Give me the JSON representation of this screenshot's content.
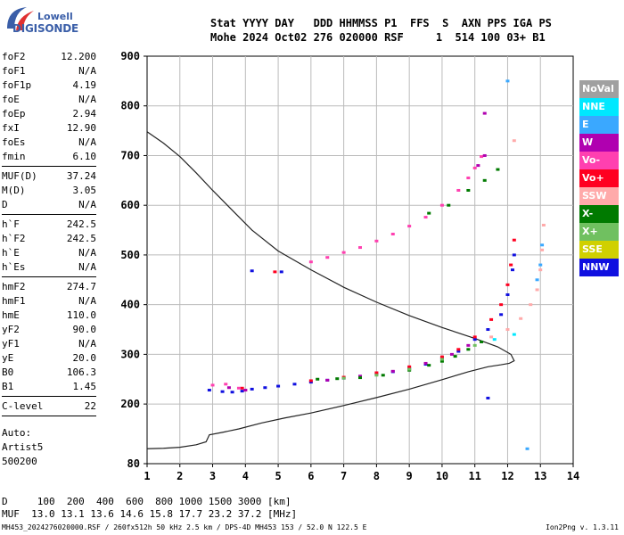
{
  "logo": {
    "line1": "Lowell",
    "line2": "DIGISONDE"
  },
  "header": {
    "labels": "Stat YYYY DAY   DDD HHMMSS P1  FFS  S  AXN PPS IGA PS",
    "values": "Mohe 2024 Oct02 276 020000 RSF     1  514 100 03+ B1"
  },
  "params_group1": [
    {
      "label": "foF2",
      "value": "12.200"
    },
    {
      "label": "foF1",
      "value": "N/A"
    },
    {
      "label": "foF1p",
      "value": "4.19"
    },
    {
      "label": "foE",
      "value": "N/A"
    },
    {
      "label": "foEp",
      "value": "2.94"
    },
    {
      "label": "fxI",
      "value": "12.90"
    },
    {
      "label": "foEs",
      "value": "N/A"
    },
    {
      "label": "fmin",
      "value": "6.10"
    }
  ],
  "params_group2": [
    {
      "label": "MUF(D)",
      "value": "37.24"
    },
    {
      "label": "M(D)",
      "value": "3.05"
    },
    {
      "label": "D",
      "value": "N/A"
    }
  ],
  "params_group3": [
    {
      "label": "h`F",
      "value": "242.5"
    },
    {
      "label": "h`F2",
      "value": "242.5"
    },
    {
      "label": "h`E",
      "value": "N/A"
    },
    {
      "label": "h`Es",
      "value": "N/A"
    }
  ],
  "params_group4": [
    {
      "label": "hmF2",
      "value": "274.7"
    },
    {
      "label": "hmF1",
      "value": "N/A"
    },
    {
      "label": "hmE",
      "value": "110.0"
    },
    {
      "label": "yF2",
      "value": "90.0"
    },
    {
      "label": "yF1",
      "value": "N/A"
    },
    {
      "label": "yE",
      "value": "20.0"
    },
    {
      "label": "B0",
      "value": "106.3"
    },
    {
      "label": "B1",
      "value": "1.45"
    }
  ],
  "params_group5": [
    {
      "label": "C-level",
      "value": "22"
    }
  ],
  "autoscale": {
    "line1": "Auto:",
    "line2": "Artist5",
    "line3": "500200"
  },
  "legend": [
    {
      "label": "NoVal",
      "color": "#a0a0a0"
    },
    {
      "label": "NNE",
      "color": "#00e8ff"
    },
    {
      "label": "E",
      "color": "#3aa8ff"
    },
    {
      "label": "W",
      "color": "#b000b0"
    },
    {
      "label": "Vo-",
      "color": "#ff40b0"
    },
    {
      "label": "Vo+",
      "color": "#ff0020"
    },
    {
      "label": "SSW",
      "color": "#ffaaaa"
    },
    {
      "label": "X-",
      "color": "#007a00"
    },
    {
      "label": "X+",
      "color": "#70c060"
    },
    {
      "label": "SSE",
      "color": "#d0d000"
    },
    {
      "label": "NNW",
      "color": "#1010e0"
    }
  ],
  "muf_table": {
    "d_line": "D     100  200  400  600  800 1000 1500 3000 [km]",
    "muf_line": "MUF  13.0 13.1 13.6 14.6 15.8 17.7 23.2 37.2 [MHz]"
  },
  "footer": {
    "left": "MH453_2024276020000.RSF / 260fx512h 50 kHz 2.5 km / DPS-4D MH453 153 / 52.0 N 122.5 E",
    "right": "Ion2Png v. 1.3.11"
  },
  "chart_data": {
    "type": "scatter",
    "x_ticks": [
      1,
      2,
      3,
      4,
      5,
      6,
      7,
      8,
      9,
      10,
      11,
      12,
      13,
      14
    ],
    "y_ticks": [
      80,
      200,
      300,
      400,
      500,
      600,
      700,
      800,
      900
    ],
    "xlim": [
      1,
      14
    ],
    "ylim": [
      80,
      900
    ],
    "grid": true,
    "legend_position": "right",
    "series": [
      {
        "name": "NNW",
        "color": "#1010e0",
        "x": [
          2.9,
          3.3,
          3.6,
          3.9,
          4.2,
          4.6,
          5.0,
          5.5,
          6.0,
          6.5,
          7.0,
          7.5,
          8.0,
          8.5,
          9.0,
          9.5,
          10.0,
          10.5,
          11.0,
          11.4,
          11.8,
          12.0,
          12.15,
          12.2,
          4.2,
          5.1,
          11.4
        ],
        "y": [
          228,
          225,
          224,
          226,
          230,
          233,
          236,
          240,
          244,
          248,
          252,
          256,
          260,
          265,
          272,
          280,
          292,
          306,
          330,
          350,
          380,
          420,
          470,
          500,
          468,
          466,
          212
        ]
      },
      {
        "name": "Vo+",
        "color": "#ff0020",
        "x": [
          6.0,
          7.0,
          8.0,
          9.0,
          10.0,
          10.5,
          11.0,
          11.5,
          11.8,
          12.0,
          12.1,
          12.2,
          3.9,
          4.9
        ],
        "y": [
          247,
          254,
          263,
          275,
          295,
          310,
          335,
          370,
          400,
          440,
          480,
          530,
          232,
          466
        ]
      },
      {
        "name": "Vo-",
        "color": "#ff40b0",
        "x": [
          6.0,
          6.5,
          7.0,
          7.5,
          8.0,
          8.5,
          9.0,
          9.5,
          10.0,
          10.5,
          10.8,
          11.0,
          11.2,
          3.0,
          3.4,
          3.8,
          4.0
        ],
        "y": [
          486,
          495,
          505,
          515,
          528,
          542,
          558,
          576,
          600,
          630,
          655,
          675,
          698,
          238,
          240,
          232,
          228
        ]
      },
      {
        "name": "W",
        "color": "#b000b0",
        "x": [
          6.5,
          7.5,
          8.5,
          9.5,
          10.3,
          10.8,
          11.1,
          11.3,
          11.3,
          3.5,
          4.0
        ],
        "y": [
          248,
          256,
          266,
          282,
          300,
          318,
          680,
          700,
          785,
          233,
          228
        ]
      },
      {
        "name": "X-",
        "color": "#007a00",
        "x": [
          6.2,
          6.8,
          7.5,
          8.2,
          9.0,
          9.6,
          10.0,
          10.4,
          10.8,
          11.2,
          9.6,
          10.2,
          10.8,
          11.3,
          11.7
        ],
        "y": [
          250,
          251,
          253,
          258,
          268,
          278,
          286,
          296,
          310,
          325,
          584,
          600,
          630,
          650,
          672
        ]
      },
      {
        "name": "X+",
        "color": "#70c060",
        "x": [
          7.0,
          8.0,
          9.0,
          10.0,
          11.0
        ],
        "y": [
          252,
          258,
          270,
          290,
          318
        ]
      },
      {
        "name": "SSW",
        "color": "#ffaaaa",
        "x": [
          11.5,
          12.0,
          12.4,
          12.7,
          12.9,
          13.0,
          13.05,
          13.1,
          12.2
        ],
        "y": [
          335,
          350,
          372,
          400,
          430,
          470,
          510,
          560,
          730
        ]
      },
      {
        "name": "E",
        "color": "#3aa8ff",
        "x": [
          12.9,
          13.0,
          13.05,
          12.6,
          12.0
        ],
        "y": [
          450,
          480,
          520,
          110,
          850
        ]
      },
      {
        "name": "NNE",
        "color": "#00e8ff",
        "x": [
          11.6,
          12.2
        ],
        "y": [
          330,
          340
        ]
      }
    ],
    "profile": {
      "x": [
        1.0,
        1.5,
        2.0,
        2.5,
        2.8,
        2.9,
        3.3,
        3.8,
        4.5,
        5.2,
        6.0,
        7.0,
        8.0,
        9.0,
        10.0,
        10.8,
        11.4,
        11.8,
        12.05,
        12.2,
        12.1,
        11.7,
        11.0,
        10.0,
        9.0,
        8.0,
        7.0,
        6.0,
        5.0,
        4.2,
        3.6,
        3.0,
        2.5,
        2.0,
        1.5,
        1.0
      ],
      "y": [
        110,
        111,
        113,
        118,
        124,
        138,
        143,
        150,
        162,
        172,
        182,
        197,
        213,
        230,
        249,
        265,
        275,
        279,
        282,
        287,
        300,
        315,
        332,
        354,
        378,
        405,
        435,
        470,
        508,
        550,
        590,
        630,
        665,
        698,
        725,
        748
      ]
    }
  }
}
